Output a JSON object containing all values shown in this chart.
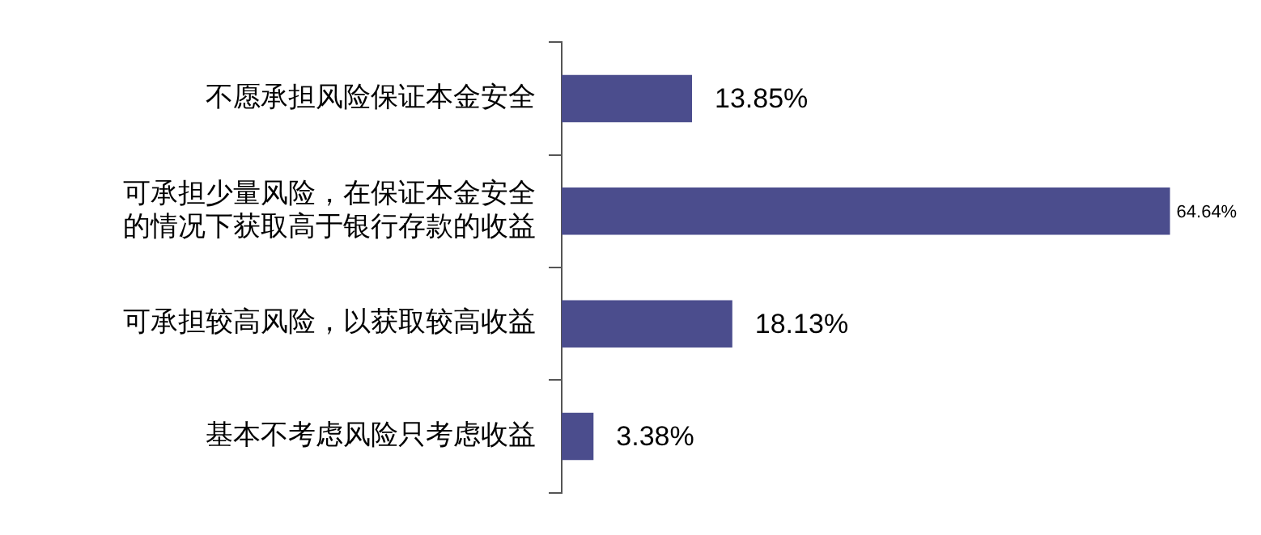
{
  "chart_data": {
    "type": "bar",
    "orientation": "horizontal",
    "categories": [
      "不愿承担风险保证本金安全",
      "可承担少量风险，在保证本金安全的情况下获取高于银行存款的收益",
      "可承担较高风险，以获取较高收益",
      "基本不考虑风险只考虑收益"
    ],
    "values": [
      13.85,
      64.64,
      18.13,
      3.38
    ],
    "value_labels": [
      "13.85%",
      "64.64%",
      "18.13%",
      "3.38%"
    ],
    "color": "#4b4d8d",
    "legend": false
  }
}
